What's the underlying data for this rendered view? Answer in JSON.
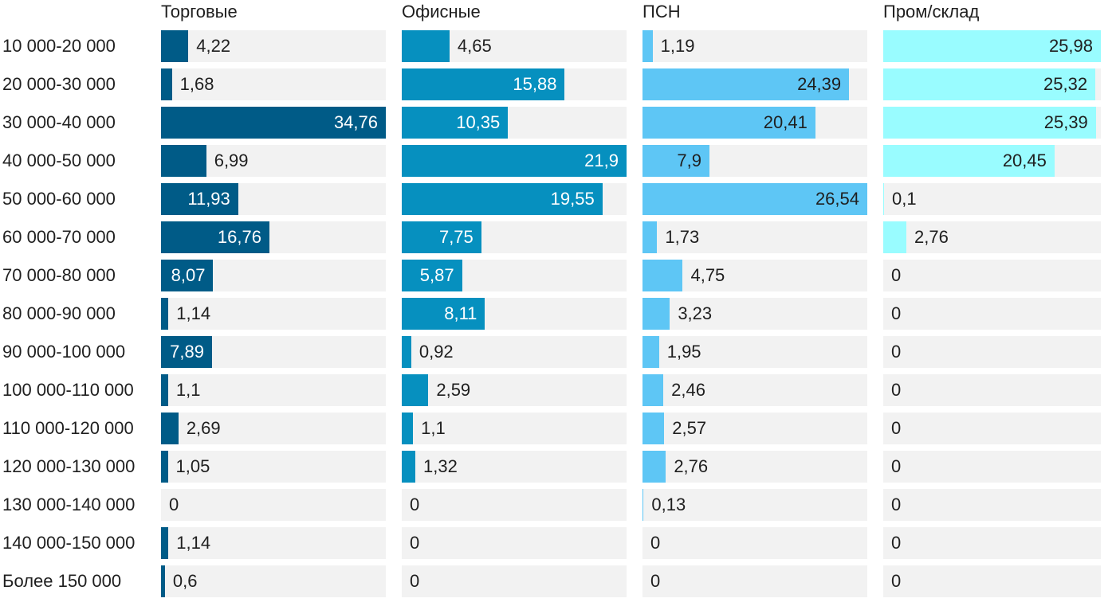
{
  "chart_data": {
    "type": "bar",
    "orientation": "horizontal",
    "layout": "small-multiples",
    "categories": [
      "10 000-20 000",
      "20 000-30 000",
      "30 000-40 000",
      "40 000-50 000",
      "50 000-60 000",
      "60 000-70 000",
      "70 000-80 000",
      "80 000-90 000",
      "90 000-100 000",
      "100 000-110 000",
      "110 000-120 000",
      "120 000-130 000",
      "130 000-140 000",
      "140 000-150 000",
      "Более 150 000"
    ],
    "series": [
      {
        "name": "Торговые",
        "color": "#005b87",
        "text_inside": "#ffffff",
        "values": [
          4.22,
          1.68,
          34.76,
          6.99,
          11.93,
          16.76,
          8.07,
          1.14,
          7.89,
          1.1,
          2.69,
          1.05,
          0,
          1.14,
          0.6
        ],
        "labels": [
          "4,22",
          "1,68",
          "34,76",
          "6,99",
          "11,93",
          "16,76",
          "8,07",
          "1,14",
          "7,89",
          "1,1",
          "2,69",
          "1,05",
          "0",
          "1,14",
          "0,6"
        ]
      },
      {
        "name": "Офисные",
        "color": "#0690bf",
        "text_inside": "#ffffff",
        "values": [
          4.65,
          15.88,
          10.35,
          21.9,
          19.55,
          7.75,
          5.87,
          8.11,
          0.92,
          2.59,
          1.1,
          1.32,
          0,
          0,
          0
        ],
        "labels": [
          "4,65",
          "15,88",
          "10,35",
          "21,9",
          "19,55",
          "7,75",
          "5,87",
          "8,11",
          "0,92",
          "2,59",
          "1,1",
          "1,32",
          "0",
          "0",
          "0"
        ]
      },
      {
        "name": "ПСН",
        "color": "#5ec6f5",
        "text_inside": "#1f1f1f",
        "values": [
          1.19,
          24.39,
          20.41,
          7.9,
          26.54,
          1.73,
          4.75,
          3.23,
          1.95,
          2.46,
          2.57,
          2.76,
          0.13,
          0,
          0
        ],
        "labels": [
          "1,19",
          "24,39",
          "20,41",
          "7,9",
          "26,54",
          "1,73",
          "4,75",
          "3,23",
          "1,95",
          "2,46",
          "2,57",
          "2,76",
          "0,13",
          "0",
          "0"
        ]
      },
      {
        "name": "Пром/склад",
        "color": "#99fcff",
        "text_inside": "#1f1f1f",
        "values": [
          25.98,
          25.32,
          25.39,
          20.45,
          0.1,
          2.76,
          0,
          0,
          0,
          0,
          0,
          0,
          0,
          0,
          0
        ],
        "labels": [
          "25,98",
          "25,32",
          "25,39",
          "20,45",
          "0,1",
          "2,76",
          "0",
          "0",
          "0",
          "0",
          "0",
          "0",
          "0",
          "0",
          "0"
        ]
      }
    ],
    "track_color": "#f2f2f2",
    "text_color": "#1f1f1f",
    "title": "",
    "xlabel": "",
    "ylabel": ""
  }
}
